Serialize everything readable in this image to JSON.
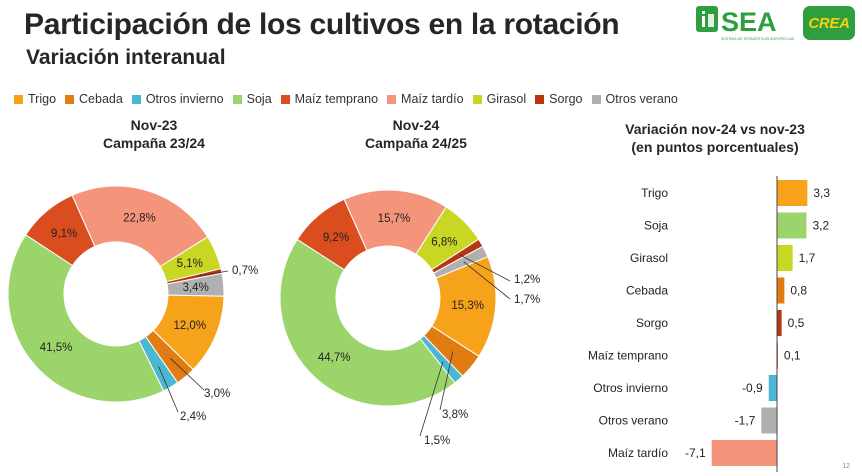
{
  "header": {
    "title": "Participación de los cultivos en la rotación",
    "subtitle": "Variación interanual"
  },
  "logos": {
    "sea_label": "SEA",
    "sea_caption": "SISTEMA DE ESTADÍSTICAS AGROPECUARIAS",
    "crea_label": "CREA"
  },
  "colors": {
    "Trigo": "#f7a21b",
    "Cebada": "#e07c12",
    "Otros invierno": "#4bb7d3",
    "Soja": "#9bd46a",
    "Maíz temprano": "#d94d1e",
    "Maíz tardío": "#f4947a",
    "Girasol": "#c8d624",
    "Sorgo": "#b5360f",
    "Otros verano": "#b0b0b0"
  },
  "legend": [
    "Trigo",
    "Cebada",
    "Otros invierno",
    "Soja",
    "Maíz temprano",
    "Maíz tardío",
    "Girasol",
    "Sorgo",
    "Otros verano"
  ],
  "page_number": "12",
  "chart_data": [
    {
      "type": "pie",
      "title": "Nov-23",
      "subtitle": "Campaña 23/24",
      "slices": [
        {
          "name": "Trigo",
          "value": 12.0,
          "label": "12,0%"
        },
        {
          "name": "Cebada",
          "value": 3.0,
          "label": "3,0%"
        },
        {
          "name": "Otros invierno",
          "value": 2.4,
          "label": "2,4%"
        },
        {
          "name": "Soja",
          "value": 41.5,
          "label": "41,5%"
        },
        {
          "name": "Maíz temprano",
          "value": 9.1,
          "label": "9,1%"
        },
        {
          "name": "Maíz tardío",
          "value": 22.8,
          "label": "22,8%"
        },
        {
          "name": "Girasol",
          "value": 5.1,
          "label": "5,1%"
        },
        {
          "name": "Sorgo",
          "value": 0.7,
          "label": "0,7%"
        },
        {
          "name": "Otros verano",
          "value": 3.4,
          "label": "3,4%"
        }
      ]
    },
    {
      "type": "pie",
      "title": "Nov-24",
      "subtitle": "Campaña 24/25",
      "slices": [
        {
          "name": "Trigo",
          "value": 15.3,
          "label": "15,3%"
        },
        {
          "name": "Cebada",
          "value": 3.8,
          "label": "3,8%"
        },
        {
          "name": "Otros invierno",
          "value": 1.5,
          "label": "1,5%"
        },
        {
          "name": "Soja",
          "value": 44.7,
          "label": "44,7%"
        },
        {
          "name": "Maíz temprano",
          "value": 9.2,
          "label": "9,2%"
        },
        {
          "name": "Maíz tardío",
          "value": 15.7,
          "label": "15,7%"
        },
        {
          "name": "Girasol",
          "value": 6.8,
          "label": "6,8%"
        },
        {
          "name": "Sorgo",
          "value": 1.2,
          "label": "1,2%"
        },
        {
          "name": "Otros verano",
          "value": 1.7,
          "label": "1,7%"
        }
      ]
    },
    {
      "type": "bar",
      "orientation": "horizontal",
      "title": "Variación nov-24 vs nov-23",
      "subtitle": "(en puntos porcentuales)",
      "categories": [
        "Trigo",
        "Soja",
        "Girasol",
        "Cebada",
        "Sorgo",
        "Maíz temprano",
        "Otros invierno",
        "Otros verano",
        "Maíz tardío"
      ],
      "values": [
        3.3,
        3.2,
        1.7,
        0.8,
        0.5,
        0.1,
        -0.9,
        -1.7,
        -7.1
      ],
      "labels": [
        "3,3",
        "3,2",
        "1,7",
        "0,8",
        "0,5",
        "0,1",
        "-0,9",
        "-1,7",
        "-7,1"
      ]
    }
  ]
}
